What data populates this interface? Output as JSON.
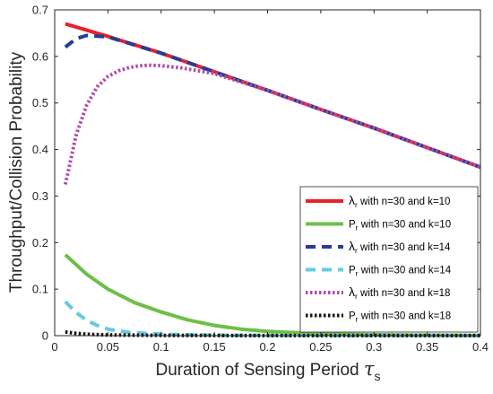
{
  "chart_data": {
    "type": "line",
    "xlabel": "Duration of Sensing Period",
    "xlabel_symbol": "τ",
    "xlabel_symbol_sub": "s",
    "ylabel": "Throughput/Collision Probability",
    "xlim": [
      0,
      0.4
    ],
    "ylim": [
      0,
      0.7
    ],
    "x_ticks": [
      0,
      0.05,
      0.1,
      0.15,
      0.2,
      0.25,
      0.3,
      0.35,
      0.4
    ],
    "x_tick_labels": [
      "0",
      "0.05",
      "0.1",
      "0.15",
      "0.2",
      "0.25",
      "0.3",
      "0.35",
      "0.4"
    ],
    "y_ticks": [
      0,
      0.1,
      0.2,
      0.3,
      0.4,
      0.5,
      0.6,
      0.7
    ],
    "y_tick_labels": [
      "0",
      "0.1",
      "0.2",
      "0.3",
      "0.4",
      "0.5",
      "0.6",
      "0.7"
    ],
    "grid": false,
    "legend_position": "bottom-right",
    "series": [
      {
        "name": "λr with n=30 and k=10",
        "legend_symbol": "λ",
        "legend_sub": "r",
        "legend_rest": " with n=30 and k=10",
        "color": "#e8202a",
        "style": "solid",
        "x": [
          0.01,
          0.05,
          0.1,
          0.15,
          0.2,
          0.25,
          0.3,
          0.35,
          0.4
        ],
        "y": [
          0.67,
          0.643,
          0.607,
          0.567,
          0.527,
          0.486,
          0.446,
          0.404,
          0.362
        ]
      },
      {
        "name": "Pr with n=30 and k=10",
        "legend_symbol": "P",
        "legend_sub": "r",
        "legend_rest": " with n=30 and k=10",
        "color": "#6dbf45",
        "style": "solid",
        "x": [
          0.01,
          0.03,
          0.05,
          0.075,
          0.1,
          0.125,
          0.15,
          0.175,
          0.2,
          0.25,
          0.3,
          0.35,
          0.4
        ],
        "y": [
          0.174,
          0.132,
          0.1,
          0.071,
          0.051,
          0.034,
          0.022,
          0.014,
          0.009,
          0.004,
          0.002,
          0.001,
          0.0005
        ]
      },
      {
        "name": "λr with n=30 and k=14",
        "legend_symbol": "λ",
        "legend_sub": "r",
        "legend_rest": " with n=30 and k=14",
        "color": "#253d95",
        "style": "dashed",
        "x": [
          0.01,
          0.02,
          0.03,
          0.05,
          0.1,
          0.15,
          0.2,
          0.25,
          0.3,
          0.35,
          0.4
        ],
        "y": [
          0.62,
          0.638,
          0.645,
          0.642,
          0.607,
          0.567,
          0.527,
          0.486,
          0.446,
          0.404,
          0.362
        ]
      },
      {
        "name": "Pr with n=30 and k=14",
        "legend_symbol": "P",
        "legend_sub": "r",
        "legend_rest": " with n=30 and k=14",
        "color": "#63cbe0",
        "style": "dashed",
        "x": [
          0.01,
          0.02,
          0.03,
          0.04,
          0.05,
          0.07,
          0.1,
          0.15,
          0.2,
          0.3,
          0.4
        ],
        "y": [
          0.073,
          0.05,
          0.033,
          0.022,
          0.014,
          0.007,
          0.003,
          0.001,
          0.0005,
          0.0002,
          0.0001
        ]
      },
      {
        "name": "λr with n=30 and k=18",
        "legend_symbol": "λ",
        "legend_sub": "r",
        "legend_rest": " with n=30 and k=18",
        "color": "#b04aa6",
        "style": "dotted",
        "x": [
          0.01,
          0.02,
          0.03,
          0.04,
          0.05,
          0.06,
          0.07,
          0.08,
          0.09,
          0.1,
          0.12,
          0.15,
          0.2,
          0.25,
          0.3,
          0.35,
          0.4
        ],
        "y": [
          0.325,
          0.43,
          0.495,
          0.535,
          0.557,
          0.569,
          0.576,
          0.58,
          0.581,
          0.58,
          0.575,
          0.563,
          0.527,
          0.486,
          0.446,
          0.404,
          0.362
        ]
      },
      {
        "name": "Pr with n=30 and k=18",
        "legend_symbol": "P",
        "legend_sub": "r",
        "legend_rest": " with n=30 and k=18",
        "color": "#111111",
        "style": "dotted",
        "x": [
          0.01,
          0.02,
          0.03,
          0.05,
          0.1,
          0.2,
          0.3,
          0.4
        ],
        "y": [
          0.008,
          0.005,
          0.003,
          0.0015,
          0.0005,
          0.0002,
          0.0001,
          0.0001
        ]
      }
    ]
  }
}
